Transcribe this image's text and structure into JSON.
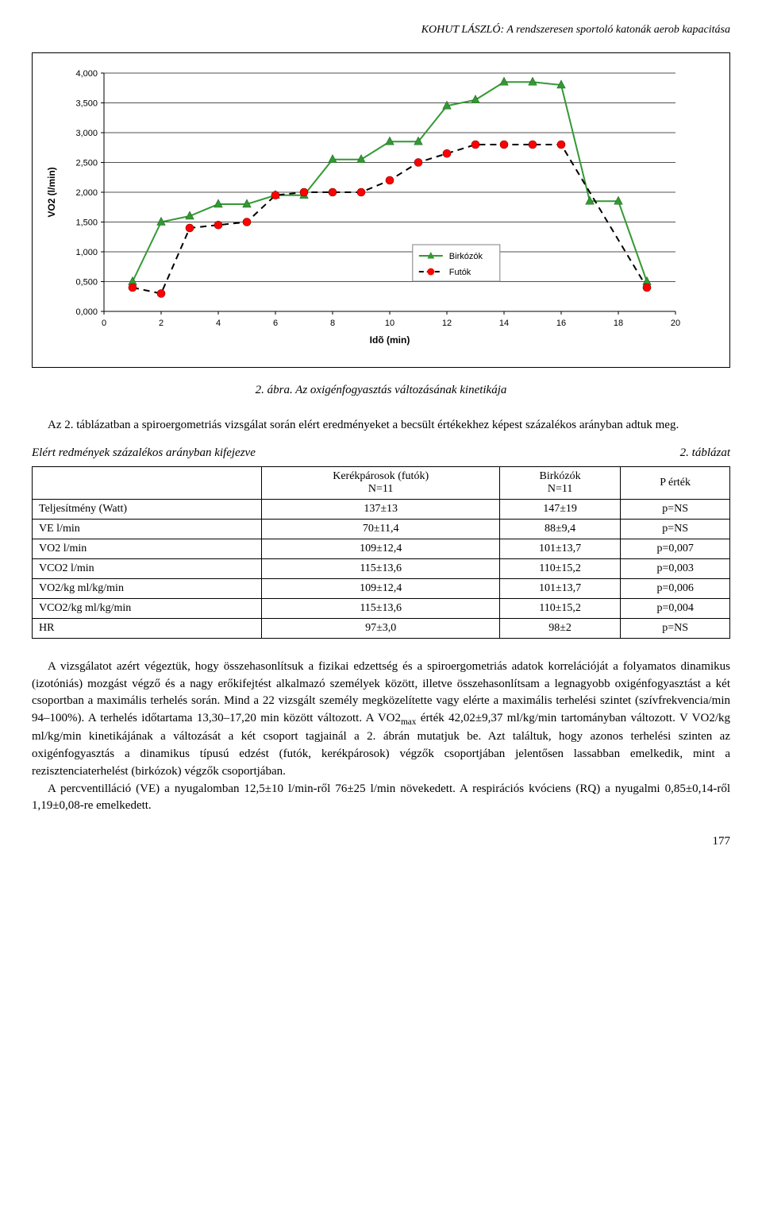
{
  "header": "KOHUT LÁSZLÓ: A rendszeresen sportoló katonák aerob kapacitása",
  "chart": {
    "type": "line",
    "ylabel": "VO2 (l/min)",
    "xlabel": "Idõ (min)",
    "ylabel_fontsize": 12,
    "xlabel_fontsize": 12,
    "tick_fontsize": 11,
    "ylim": [
      0,
      4
    ],
    "ytick_step": 0.5,
    "yticks": [
      "0,000",
      "0,500",
      "1,000",
      "1,500",
      "2,000",
      "2,500",
      "3,000",
      "3,500",
      "4,000"
    ],
    "xlim": [
      0,
      20
    ],
    "xtick_step": 2,
    "xticks": [
      "0",
      "2",
      "4",
      "6",
      "8",
      "10",
      "12",
      "14",
      "16",
      "18",
      "20"
    ],
    "series": [
      {
        "name": "Birkózók",
        "color": "#339933",
        "marker_color": "#339933",
        "marker": "triangle",
        "dash": "solid",
        "line_width": 2,
        "x": [
          1,
          2,
          3,
          4,
          5,
          6,
          7,
          8,
          9,
          10,
          11,
          12,
          13,
          14,
          15,
          16,
          17,
          18,
          19
        ],
        "y": [
          0.5,
          1.5,
          1.6,
          1.8,
          1.8,
          1.95,
          1.95,
          2.55,
          2.55,
          2.85,
          2.85,
          3.45,
          3.55,
          3.85,
          3.85,
          3.8,
          1.85,
          1.85,
          0.5
        ]
      },
      {
        "name": "Futók",
        "color": "#000000",
        "marker_color": "#ff0000",
        "marker": "circle",
        "dash": "dashed",
        "line_width": 2,
        "x": [
          1,
          2,
          3,
          4,
          5,
          6,
          7,
          8,
          9,
          10,
          11,
          12,
          13,
          14,
          15,
          16,
          19
        ],
        "y": [
          0.4,
          0.3,
          1.4,
          1.45,
          1.5,
          1.95,
          2.0,
          2.0,
          2.0,
          2.2,
          2.5,
          2.65,
          2.8,
          2.8,
          2.8,
          2.8,
          0.4
        ]
      }
    ],
    "legend": {
      "position": "inside-right",
      "background": "#ffffff",
      "border": "#808080"
    },
    "background_color": "#ffffff",
    "plot_background": "#ffffff",
    "grid_color": "#000000",
    "axis_color": "#000000"
  },
  "caption": "2. ábra. Az oxigénfogyasztás változásának kinetikája",
  "para1": "Az 2. táblázatban a spiroergometriás vizsgálat során elért eredményeket a becsült értékekhez képest százalékos arányban adtuk meg.",
  "tableTitle": "Elért redmények százalékos arányban kifejezve",
  "tableLabel": "2. táblázat",
  "table": {
    "columns": [
      "",
      "Kerékpárosok (futók)\nN=11",
      "Birkózók\nN=11",
      "P érték"
    ],
    "rows": [
      [
        "Teljesítmény (Watt)",
        "137±13",
        "147±19",
        "p=NS"
      ],
      [
        "VE l/min",
        "70±11,4",
        "88±9,4",
        "p=NS"
      ],
      [
        "VO2 l/min",
        "109±12,4",
        "101±13,7",
        "p=0,007"
      ],
      [
        "VCO2 l/min",
        "115±13,6",
        "110±15,2",
        "p=0,003"
      ],
      [
        "VO2/kg ml/kg/min",
        "109±12,4",
        "101±13,7",
        "p=0,006"
      ],
      [
        "VCO2/kg ml/kg/min",
        "115±13,6",
        "110±15,2",
        "p=0,004"
      ],
      [
        "HR",
        "97±3,0",
        "98±2",
        "p=NS"
      ]
    ]
  },
  "body": {
    "p1": "A vizsgálatot azért végeztük, hogy összehasonlítsuk a fizikai edzettség és a spiroergometriás adatok korrelációját a folyamatos dinamikus (izotóniás) mozgást végző és a nagy erőkifejtést alkalmazó személyek között, illetve összehasonlítsam a legnagyobb oxigénfogyasztást a két csoportban a maximális terhelés során. Mind a 22 vizsgált személy megközelítette vagy elérte a maximális terhelési szintet (szívfrekvencia/min 94–100%). A terhelés időtartama 13,30–17,20 min között változott. A VO2max érték 42,02±9,37 ml/kg/min tartományban változott. V VO2/kg ml/kg/min kinetikájának a változását a két csoport tagjainál a 2. ábrán mutatjuk be. Azt találtuk, hogy azonos terhelési szinten az oxigénfogyasztás a dinamikus típusú edzést (futók, kerékpárosok) végzők csoportjában jelentősen lassabban emelkedik, mint a rezisztenciaterhelést (birkózok) végzők csoportjában.",
    "p2": "A percventilláció (VE) a nyugalomban 12,5±10 l/min-ről 76±25 l/min növekedett. A respirációs kvóciens (RQ) a nyugalmi 0,85±0,14-ről 1,19±0,08-re emelkedett."
  },
  "pageNumber": "177"
}
